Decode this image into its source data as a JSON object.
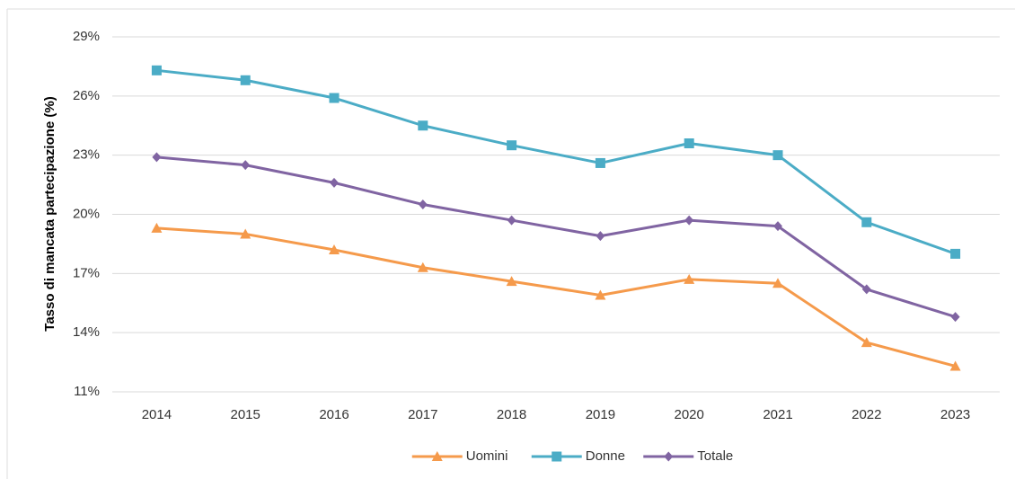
{
  "chart_data": {
    "type": "line",
    "y_label": "Tasso di mancata partecipazione (%)",
    "categories": [
      "2014",
      "2015",
      "2016",
      "2017",
      "2018",
      "2019",
      "2020",
      "2021",
      "2022",
      "2023"
    ],
    "series": [
      {
        "name": "Uomini",
        "color": "#f59a4b",
        "marker": "triangle",
        "values": [
          19.3,
          19.0,
          18.2,
          17.3,
          16.6,
          15.9,
          16.7,
          16.5,
          13.5,
          12.3
        ]
      },
      {
        "name": "Donne",
        "color": "#4bacc6",
        "marker": "square",
        "values": [
          27.3,
          26.8,
          25.9,
          24.5,
          23.5,
          22.6,
          23.6,
          23.0,
          19.6,
          18.0
        ]
      },
      {
        "name": "Totale",
        "color": "#8064a2",
        "marker": "diamond",
        "values": [
          22.9,
          22.5,
          21.6,
          20.5,
          19.7,
          18.9,
          19.7,
          19.4,
          16.2,
          14.8
        ]
      }
    ],
    "ylim": [
      11,
      29
    ],
    "yticks": [
      {
        "value": 11,
        "label": "11%"
      },
      {
        "value": 14,
        "label": "14%"
      },
      {
        "value": 17,
        "label": "17%"
      },
      {
        "value": 20,
        "label": "20%"
      },
      {
        "value": 23,
        "label": "23%"
      },
      {
        "value": 26,
        "label": "26%"
      },
      {
        "value": 29,
        "label": "29%"
      }
    ],
    "grid": true,
    "legend": "bottom"
  }
}
